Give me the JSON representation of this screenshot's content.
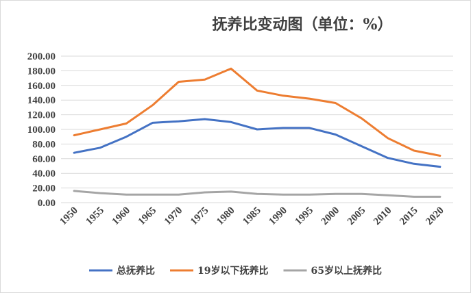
{
  "chart_data": {
    "type": "line",
    "title": "抚养比变动图（单位：%）",
    "xlabel": "",
    "ylabel": "",
    "categories": [
      "1950",
      "1955",
      "1960",
      "1965",
      "1970",
      "1975",
      "1980",
      "1985",
      "1990",
      "1995",
      "2000",
      "2005",
      "2010",
      "2015",
      "2020"
    ],
    "y_tick_labels": [
      "0.00",
      "20.00",
      "40.00",
      "60.00",
      "80.00",
      "100.00",
      "120.00",
      "140.00",
      "160.00",
      "180.00",
      "200.00"
    ],
    "ylim": [
      0,
      200
    ],
    "grid": true,
    "legend_position": "bottom",
    "series": [
      {
        "name": "总抚养比",
        "color": "#4472c4",
        "values": [
          68,
          75,
          90,
          109,
          111,
          114,
          110,
          100,
          102,
          102,
          93,
          77,
          61,
          53,
          49
        ]
      },
      {
        "name": "19岁以下抚养比",
        "color": "#ed7d31",
        "values": [
          92,
          100,
          108,
          133,
          165,
          168,
          183,
          153,
          146,
          142,
          136,
          115,
          88,
          71,
          64
        ]
      },
      {
        "name": "65岁以上抚养比",
        "color": "#a5a5a5",
        "values": [
          16,
          13,
          11,
          11,
          11,
          14,
          15,
          12,
          11,
          11,
          12,
          12,
          10,
          8,
          8
        ]
      }
    ]
  }
}
